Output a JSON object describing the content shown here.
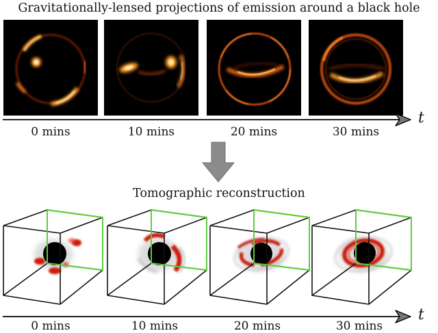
{
  "top": {
    "title": "Gravitationally-lensed projections of emission around a black hole",
    "frames": [
      {
        "time_label": "0 mins"
      },
      {
        "time_label": "10 mins"
      },
      {
        "time_label": "20 mins"
      },
      {
        "time_label": "30 mins"
      }
    ],
    "axis_label": "t"
  },
  "bottom": {
    "title": "Tomographic reconstruction",
    "frames": [
      {
        "time_label": "0 mins"
      },
      {
        "time_label": "10 mins"
      },
      {
        "time_label": "20 mins"
      },
      {
        "time_label": "30 mins"
      }
    ],
    "axis_label": "t"
  },
  "colors": {
    "panel_background": "#000000",
    "emission_glow": "#ffb040",
    "cube_edge": "#111111",
    "cube_highlight_face": "#5ccc3c",
    "arrow_fill": "#8c8c8c",
    "black_hole": "#000000",
    "emission_3d": "#cc1a0a"
  }
}
